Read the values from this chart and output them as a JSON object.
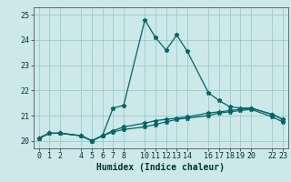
{
  "title": "",
  "xlabel": "Humidex (Indice chaleur)",
  "ylabel": "",
  "background_color": "#cce8e8",
  "grid_color": "#99cccc",
  "line_color": "#006666",
  "ylim": [
    19.7,
    25.3
  ],
  "xlim": [
    -0.5,
    23.5
  ],
  "yticks": [
    20,
    21,
    22,
    23,
    24,
    25
  ],
  "xticks": [
    0,
    1,
    2,
    4,
    5,
    6,
    7,
    8,
    10,
    11,
    12,
    13,
    14,
    16,
    17,
    18,
    19,
    20,
    22,
    23
  ],
  "line1_x": [
    0,
    1,
    2,
    4,
    5,
    6,
    7,
    8,
    10,
    11,
    12,
    13,
    14,
    16,
    17,
    18,
    19,
    20,
    22,
    23
  ],
  "line1_y": [
    20.1,
    20.3,
    20.3,
    20.2,
    20.0,
    20.2,
    21.3,
    21.4,
    24.8,
    24.1,
    23.6,
    24.2,
    23.55,
    21.9,
    21.6,
    21.35,
    21.3,
    21.3,
    21.05,
    20.85
  ],
  "line2_x": [
    0,
    1,
    2,
    4,
    5,
    6,
    7,
    8,
    10,
    11,
    12,
    13,
    14,
    16,
    17,
    18,
    19,
    20,
    22,
    23
  ],
  "line2_y": [
    20.1,
    20.3,
    20.3,
    20.2,
    20.0,
    20.2,
    20.4,
    20.55,
    20.7,
    20.8,
    20.85,
    20.9,
    20.95,
    21.1,
    21.15,
    21.2,
    21.25,
    21.3,
    21.05,
    20.85
  ],
  "line3_x": [
    0,
    1,
    2,
    4,
    5,
    6,
    7,
    8,
    10,
    11,
    12,
    13,
    14,
    16,
    17,
    18,
    19,
    20,
    22,
    23
  ],
  "line3_y": [
    20.1,
    20.3,
    20.3,
    20.2,
    20.0,
    20.2,
    20.35,
    20.45,
    20.55,
    20.65,
    20.75,
    20.85,
    20.9,
    21.0,
    21.1,
    21.15,
    21.2,
    21.25,
    20.95,
    20.75
  ],
  "marker": "*",
  "markersize": 3.5,
  "linewidth": 0.9,
  "xlabel_fontsize": 7,
  "tick_fontsize": 6
}
